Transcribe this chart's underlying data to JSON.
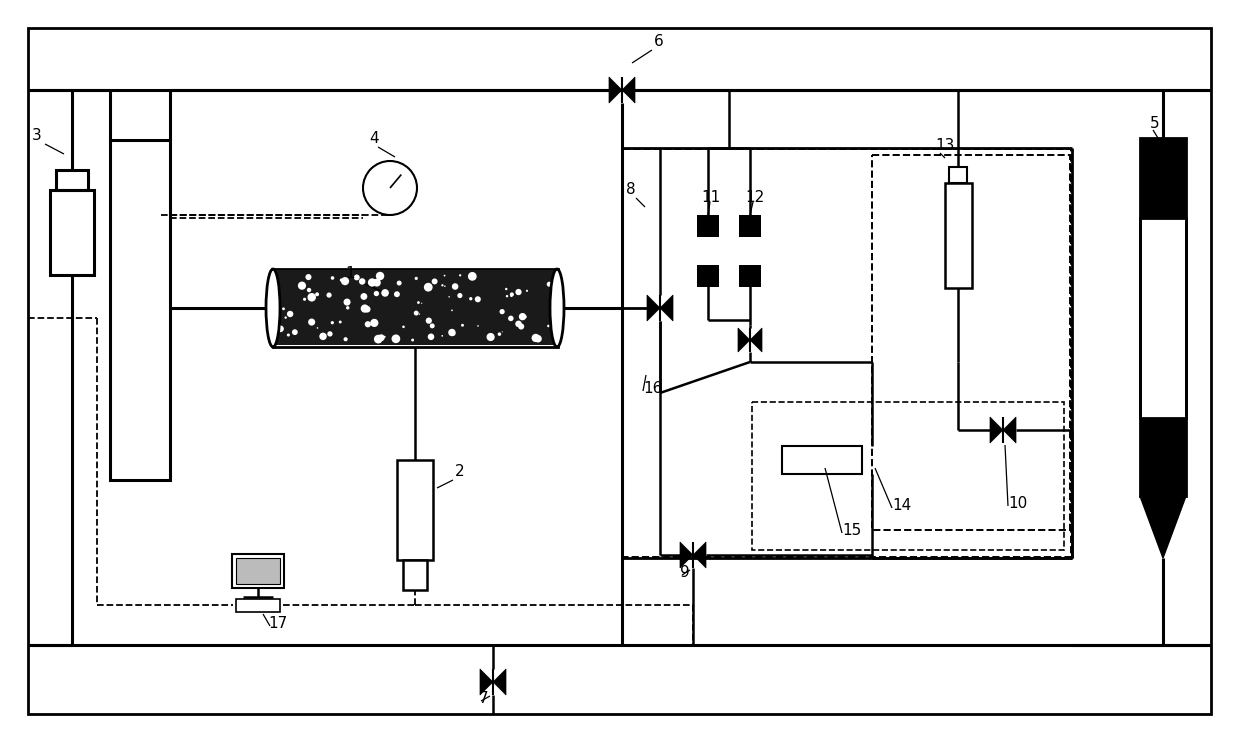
{
  "bg_color": "#ffffff",
  "lc": "#000000",
  "fig_width": 12.39,
  "fig_height": 7.42,
  "dpi": 100
}
